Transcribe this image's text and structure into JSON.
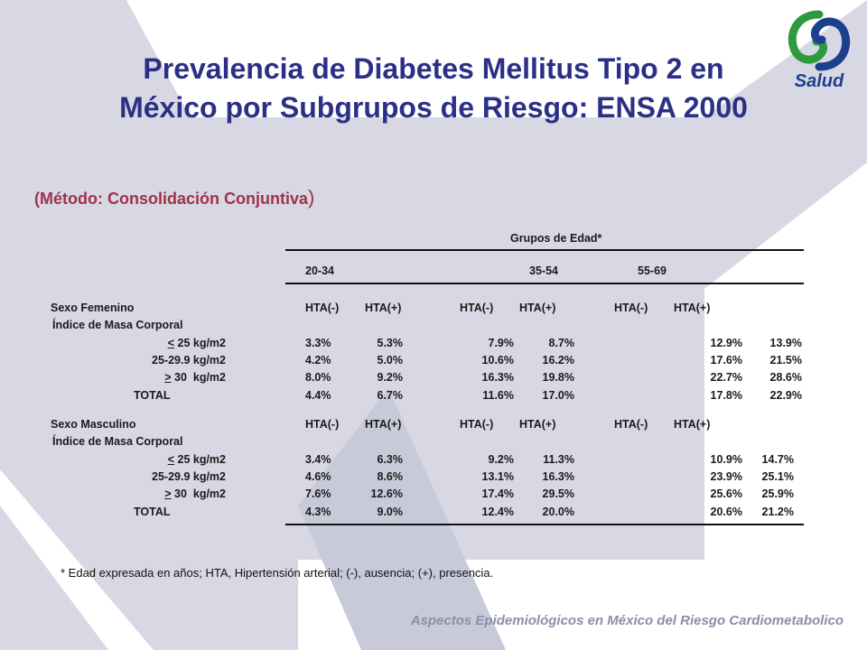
{
  "title_line1": "Prevalencia de Diabetes Mellitus Tipo 2 en",
  "title_line2": "México por Subgrupos de Riesgo: ENSA 2000",
  "subtitle_open": "(",
  "subtitle_text": "Método: Consolidación Conjuntiva",
  "subtitle_close": ")",
  "logo_text": "Salud",
  "table": {
    "group_header": "Grupos de Edad*",
    "age_groups": [
      "20-34",
      "35-54",
      "55-69"
    ],
    "sections": [
      {
        "label": "Sexo Femenino",
        "sublabel": "Índice de Masa Corporal",
        "hta_headers": [
          "HTA(-)",
          "HTA(+)",
          "HTA(-)",
          "HTA(+)",
          "HTA(-)",
          "HTA(+)"
        ],
        "rows": [
          {
            "sym": "<",
            "label": " 25 kg/m2",
            "values": [
              "3.3%",
              "5.3%",
              "7.9%",
              "8.7%",
              "12.9%",
              "13.9%"
            ]
          },
          {
            "sym": "",
            "label": "25-29.9 kg/m2",
            "values": [
              "4.2%",
              "5.0%",
              "10.6%",
              "16.2%",
              "17.6%",
              "21.5%"
            ]
          },
          {
            "sym": ">",
            "label": " 30  kg/m2",
            "values": [
              "8.0%",
              "9.2%",
              "16.3%",
              "19.8%",
              "22.7%",
              "28.6%"
            ]
          },
          {
            "sym": "",
            "label": "TOTAL",
            "values": [
              "4.4%",
              "6.7%",
              "11.6%",
              "17.0%",
              "17.8%",
              "22.9%"
            ]
          }
        ]
      },
      {
        "label": "Sexo Masculino",
        "sublabel": "Índice de Masa Corporal",
        "hta_headers": [
          "HTA(-)",
          "HTA(+)",
          "HTA(-)",
          "HTA(+)",
          "HTA(-)",
          "HTA(+)"
        ],
        "rows": [
          {
            "sym": "<",
            "label": " 25 kg/m2",
            "values": [
              "3.4%",
              "6.3%",
              "9.2%",
              "11.3%",
              "10.9%",
              "14.7%"
            ]
          },
          {
            "sym": "",
            "label": "25-29.9 kg/m2",
            "values": [
              "4.6%",
              "8.6%",
              "13.1%",
              "16.3%",
              "23.9%",
              "25.1%"
            ]
          },
          {
            "sym": ">",
            "label": " 30  kg/m2",
            "values": [
              "7.6%",
              "12.6%",
              "17.4%",
              "29.5%",
              "25.6%",
              "25.9%"
            ]
          },
          {
            "sym": "",
            "label": "TOTAL",
            "values": [
              "4.3%",
              "9.0%",
              "12.4%",
              "20.0%",
              "20.6%",
              "21.2%"
            ]
          }
        ]
      }
    ]
  },
  "footnote": "* Edad expresada en años; HTA, Hipertensión arterial; (-), ausencia; (+), presencia.",
  "footer": "Aspectos Epidemiológicos en México del Riesgo Cardiometabolico",
  "colors": {
    "title": "#2b2f86",
    "subtitle": "#a0324a",
    "footer": "#8b8ea8",
    "background_shape": "#d7d8e3",
    "logo_green": "#2e9a3e",
    "logo_blue": "#1d3f8f"
  }
}
